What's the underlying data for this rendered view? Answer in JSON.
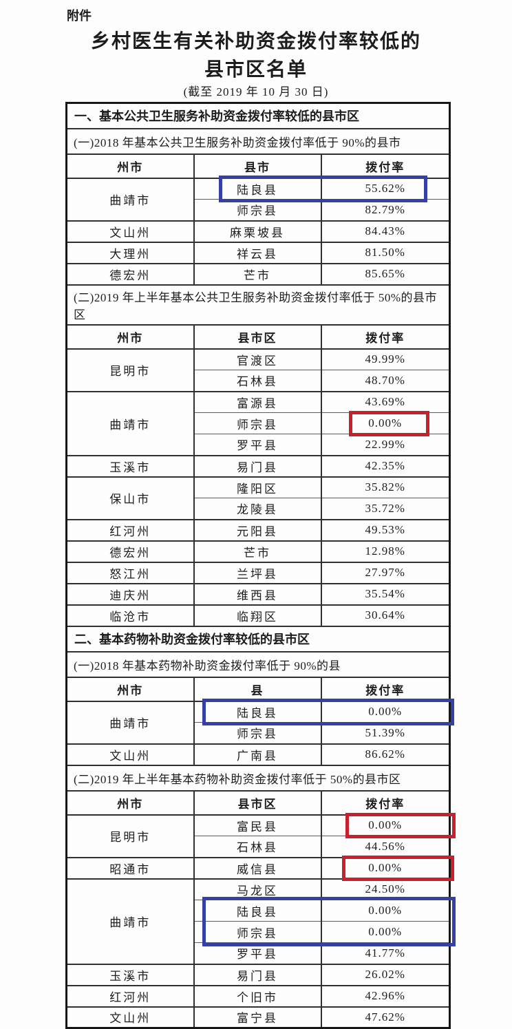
{
  "doc": {
    "attachment_label": "附件",
    "title_line1": "乡村医生有关补助资金拨付率较低的",
    "title_line2": "县市区名单",
    "date_note": "(截至 2019 年 10 月 30 日)"
  },
  "colors": {
    "highlight_blue": "#3540a5",
    "highlight_red": "#c8202c",
    "text": "#1c1c1c",
    "page_bg": "#fdfdfd"
  },
  "sections": [
    {
      "title": "一、基本公共卫生服务补助资金拨付率较低的县市区",
      "subsections": [
        {
          "title": "(一)2018 年基本公共卫生服务补助资金拨付率低于 90%的县市",
          "headers": [
            "州市",
            "县市",
            "拨付率"
          ],
          "rows": [
            {
              "p": "曲靖市",
              "c": "陆良县",
              "v": "55.62%"
            },
            {
              "c": "师宗县",
              "v": "82.79%"
            },
            {
              "p": "文山州",
              "c": "麻栗坡县",
              "v": "84.43%"
            },
            {
              "p": "大理州",
              "c": "祥云县",
              "v": "81.50%"
            },
            {
              "p": "德宏州",
              "c": "芒市",
              "v": "85.65%"
            }
          ]
        },
        {
          "title": "(二)2019 年上半年基本公共卫生服务补助资金拨付率低于 50%的县市区",
          "headers": [
            "州市",
            "县市区",
            "拨付率"
          ],
          "rows": [
            {
              "p": "昆明市",
              "c": "官渡区",
              "v": "49.99%"
            },
            {
              "c": "石林县",
              "v": "48.70%"
            },
            {
              "p": "曲靖市",
              "c": "富源县",
              "v": "43.69%"
            },
            {
              "c": "师宗县",
              "v": "0.00%"
            },
            {
              "c": "罗平县",
              "v": "22.99%"
            },
            {
              "p": "玉溪市",
              "c": "易门县",
              "v": "42.35%"
            },
            {
              "p": "保山市",
              "c": "隆阳区",
              "v": "35.82%"
            },
            {
              "c": "龙陵县",
              "v": "35.72%"
            },
            {
              "p": "红河州",
              "c": "元阳县",
              "v": "49.53%"
            },
            {
              "p": "德宏州",
              "c": "芒市",
              "v": "12.98%"
            },
            {
              "p": "怒江州",
              "c": "兰坪县",
              "v": "27.97%"
            },
            {
              "p": "迪庆州",
              "c": "维西县",
              "v": "35.54%"
            },
            {
              "p": "临沧市",
              "c": "临翔区",
              "v": "30.64%"
            }
          ]
        }
      ]
    },
    {
      "title": "二、基本药物补助资金拨付率较低的县市区",
      "subsections": [
        {
          "title": "(一)2018 年基本药物补助资金拨付率低于 90%的县",
          "headers": [
            "州市",
            "县",
            "拨付率"
          ],
          "rows": [
            {
              "p": "曲靖市",
              "c": "陆良县",
              "v": "0.00%"
            },
            {
              "c": "师宗县",
              "v": "51.39%"
            },
            {
              "p": "文山州",
              "c": "广南县",
              "v": "86.62%"
            }
          ]
        },
        {
          "title": "(二)2019 年上半年基本药物补助资金拨付率低于 50%的县市区",
          "headers": [
            "州市",
            "县市区",
            "拨付率"
          ],
          "rows": [
            {
              "p": "昆明市",
              "c": "富民县",
              "v": "0.00%"
            },
            {
              "c": "石林县",
              "v": "44.56%"
            },
            {
              "p": "昭通市",
              "c": "威信县",
              "v": "0.00%"
            },
            {
              "p": "曲靖市",
              "c": "马龙区",
              "v": "24.50%"
            },
            {
              "c": "陆良县",
              "v": "0.00%"
            },
            {
              "c": "师宗县",
              "v": "0.00%"
            },
            {
              "c": "罗平县",
              "v": "41.77%"
            },
            {
              "p": "玉溪市",
              "c": "易门县",
              "v": "26.02%"
            },
            {
              "p": "红河州",
              "c": "个旧市",
              "v": "42.96%"
            },
            {
              "p": "文山州",
              "c": "富宁县",
              "v": "47.62%"
            }
          ]
        }
      ]
    }
  ],
  "highlights": [
    {
      "id": "blue-1",
      "color": "blue"
    },
    {
      "id": "red-1",
      "color": "red"
    },
    {
      "id": "blue-2",
      "color": "blue"
    },
    {
      "id": "red-2",
      "color": "red"
    },
    {
      "id": "red-3",
      "color": "red"
    },
    {
      "id": "blue-3",
      "color": "blue"
    }
  ]
}
